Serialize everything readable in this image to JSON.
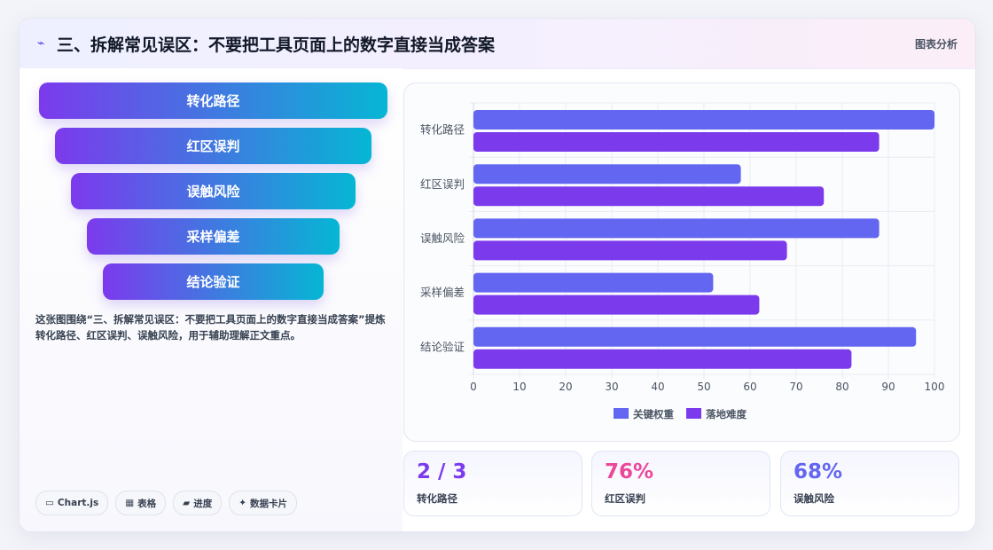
{
  "header": {
    "icon": "chart-line-icon",
    "title": "三、拆解常见误区：不要把工具页面上的数字直接当成答案",
    "tag": "图表分析"
  },
  "funnel": {
    "items": [
      "转化路径",
      "红区误判",
      "误触风险",
      "采样偏差",
      "结论验证"
    ],
    "colors": {
      "start": "#7c3aed",
      "end": "#06b6d4"
    }
  },
  "description": "这张图围绕“三、拆解常见误区：不要把工具页面上的数字直接当成答案”提炼转化路径、红区误判、误触风险，用于辅助理解正文重点。",
  "tags": [
    {
      "icon": "window-icon",
      "glyph": "▭",
      "label": "Chart.js"
    },
    {
      "icon": "table-icon",
      "glyph": "▦",
      "label": "表格"
    },
    {
      "icon": "folder-icon",
      "glyph": "▰",
      "label": "进度"
    },
    {
      "icon": "sparkle-icon",
      "glyph": "✦",
      "label": "数据卡片"
    }
  ],
  "chart_data": {
    "type": "bar",
    "orientation": "horizontal",
    "categories": [
      "转化路径",
      "红区误判",
      "误触风险",
      "采样偏差",
      "结论验证"
    ],
    "series": [
      {
        "name": "关键权重",
        "values": [
          100,
          58,
          88,
          52,
          96
        ],
        "color": "#6366f1"
      },
      {
        "name": "落地难度",
        "values": [
          88,
          76,
          68,
          62,
          82
        ],
        "color": "#7c3aed"
      }
    ],
    "xlim": [
      0,
      100
    ],
    "xticks": [
      0,
      10,
      20,
      30,
      40,
      50,
      60,
      70,
      80,
      90,
      100
    ],
    "grid": true,
    "legend": "bottom"
  },
  "stats": [
    {
      "value": "2 / 3",
      "label": "转化路径",
      "color": "#7c3aed"
    },
    {
      "value": "76%",
      "label": "红区误判",
      "color": "#ec4899"
    },
    {
      "value": "68%",
      "label": "误触风险",
      "color": "#6366f1"
    }
  ]
}
